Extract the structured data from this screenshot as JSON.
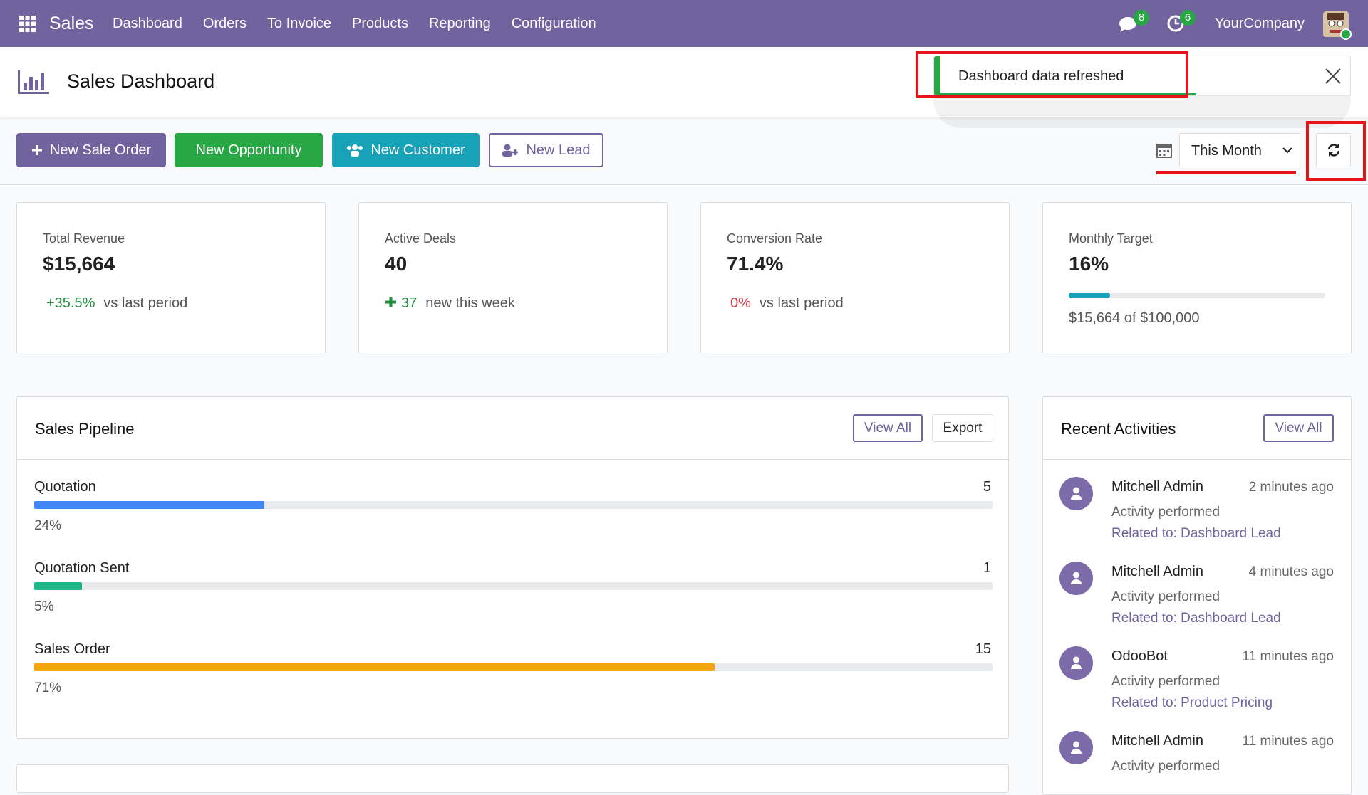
{
  "navbar": {
    "app": "Sales",
    "menu": [
      "Dashboard",
      "Orders",
      "To Invoice",
      "Products",
      "Reporting",
      "Configuration"
    ],
    "messages_count": 8,
    "activities_count": 6,
    "company": "YourCompany"
  },
  "header": {
    "title": "Sales Dashboard"
  },
  "toast": {
    "message": "Dashboard data refreshed"
  },
  "actions": [
    "New Sale Order",
    "New Opportunity",
    "New Customer",
    "New Lead"
  ],
  "period": {
    "selected": "This Month"
  },
  "kpis": [
    {
      "label": "Total Revenue",
      "value": "$15,664",
      "change": "+35.5%",
      "change_text": "vs last period"
    },
    {
      "label": "Active Deals",
      "value": "40",
      "change": "37",
      "change_text": "new this week"
    },
    {
      "label": "Conversion Rate",
      "value": "71.4%",
      "change": "0%",
      "change_text": "vs last period"
    },
    {
      "label": "Monthly Target",
      "value": "16%",
      "progress": 16,
      "detail": "$15,664 of $100,000"
    }
  ],
  "pipeline": {
    "title": "Sales Pipeline",
    "view_all": "View All",
    "export": "Export",
    "stages": [
      {
        "name": "Quotation",
        "count": 5,
        "percent": 24,
        "percent_label": "24%",
        "color": "#4285f4"
      },
      {
        "name": "Quotation Sent",
        "count": 1,
        "percent": 5,
        "percent_label": "5%",
        "color": "#20b486"
      },
      {
        "name": "Sales Order",
        "count": 15,
        "percent": 71,
        "percent_label": "71%",
        "color": "#f5a511"
      }
    ]
  },
  "activities": {
    "title": "Recent Activities",
    "view_all": "View All",
    "items": [
      {
        "user": "Mitchell Admin",
        "time": "2 minutes ago",
        "action": "Activity performed",
        "related": "Related to: Dashboard Lead"
      },
      {
        "user": "Mitchell Admin",
        "time": "4 minutes ago",
        "action": "Activity performed",
        "related": "Related to: Dashboard Lead"
      },
      {
        "user": "OdooBot",
        "time": "11 minutes ago",
        "action": "Activity performed",
        "related": "Related to: Product Pricing"
      },
      {
        "user": "Mitchell Admin",
        "time": "11 minutes ago",
        "action": "Activity performed",
        "related": ""
      }
    ]
  }
}
